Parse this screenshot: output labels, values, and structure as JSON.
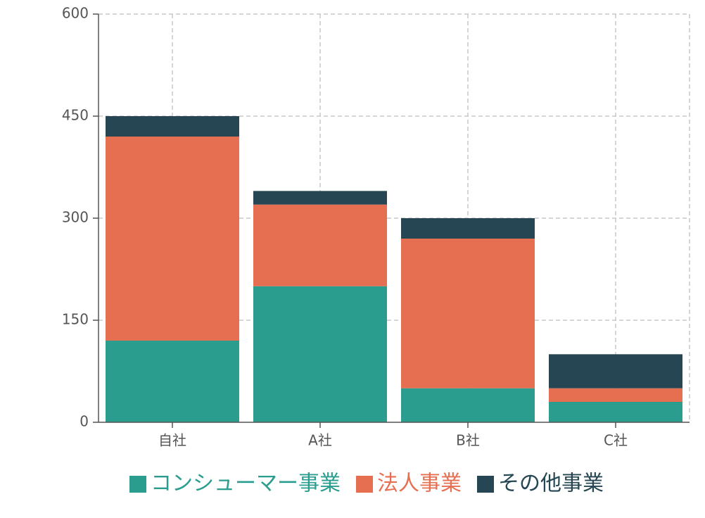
{
  "chart_data": {
    "type": "bar",
    "stacked": true,
    "categories": [
      "自社",
      "A社",
      "B社",
      "C社"
    ],
    "series": [
      {
        "name": "コンシューマー事業",
        "color": "#2a9d8f",
        "values": [
          120,
          200,
          50,
          30
        ]
      },
      {
        "name": "法人事業",
        "color": "#e76f51",
        "values": [
          300,
          120,
          220,
          20
        ]
      },
      {
        "name": "その他事業",
        "color": "#264653",
        "values": [
          30,
          20,
          30,
          50
        ]
      }
    ],
    "yticks": [
      0,
      150,
      300,
      450,
      600
    ],
    "ylim": [
      0,
      600
    ],
    "grid": true,
    "legend_position": "bottom",
    "title": "",
    "xlabel": "",
    "ylabel": ""
  }
}
